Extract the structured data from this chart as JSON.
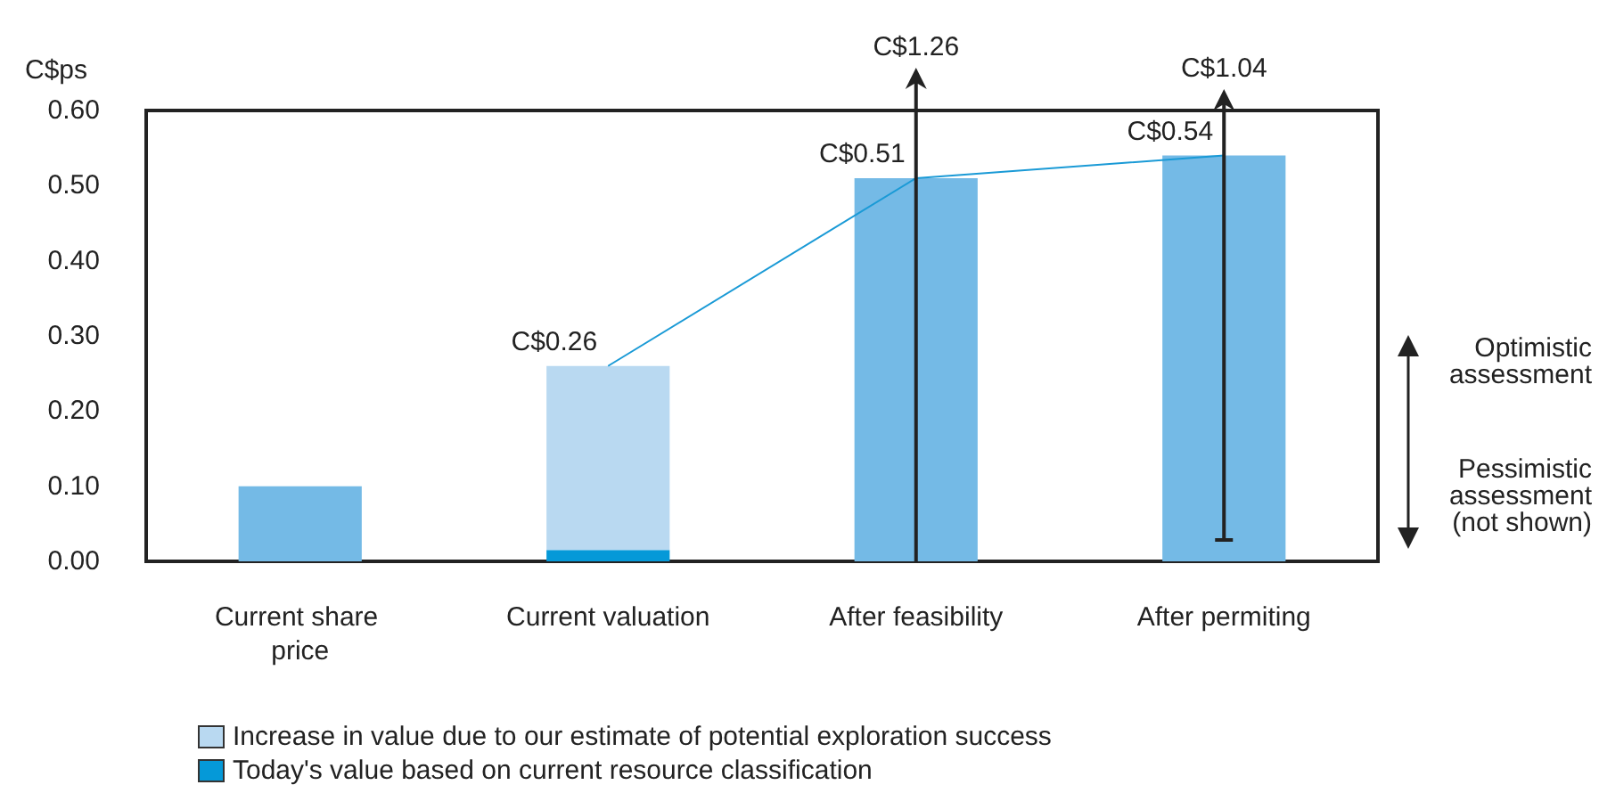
{
  "chart_data": {
    "type": "bar",
    "stacked": true,
    "ylabel": "C$ps",
    "categories": [
      "Current share price",
      "Current valuation",
      "After feasibility",
      "After permiting"
    ],
    "series": [
      {
        "name": "Today's value based on current resource classification",
        "color": "#0599d8",
        "values": [
          null,
          0.015,
          null,
          null
        ]
      },
      {
        "name": "Increase in value due to our estimate of potential exploration success",
        "color": "#b9d9f1",
        "values": [
          null,
          0.245,
          null,
          null
        ]
      },
      {
        "color": "#74bae6",
        "values": [
          0.1,
          null,
          0.51,
          0.54
        ]
      },
      {
        "type": "line",
        "color": "#1a9ad6",
        "values": [
          null,
          0.26,
          0.51,
          0.54
        ]
      }
    ],
    "totals": [
      null,
      "C$0.26",
      "C$0.51",
      "C$0.54"
    ],
    "annotations": [
      "C$1.26",
      "C$1.04",
      "Optimistic assessment",
      "Pessimistic assessment (not shown)"
    ],
    "ylim": [
      0,
      0.6
    ],
    "yticks": [
      {
        "value": 0,
        "label": "0.00"
      },
      {
        "value": 0.1,
        "label": "0.10"
      },
      {
        "value": 0.2,
        "label": "0.20"
      },
      {
        "value": 0.3,
        "label": "0.30"
      },
      {
        "value": 0.4,
        "label": "0.40"
      },
      {
        "value": 0.5,
        "label": "0.50"
      },
      {
        "value": 0.6,
        "label": "0.60"
      }
    ],
    "grid": false,
    "legend": "bottom left",
    "marker": "none"
  }
}
